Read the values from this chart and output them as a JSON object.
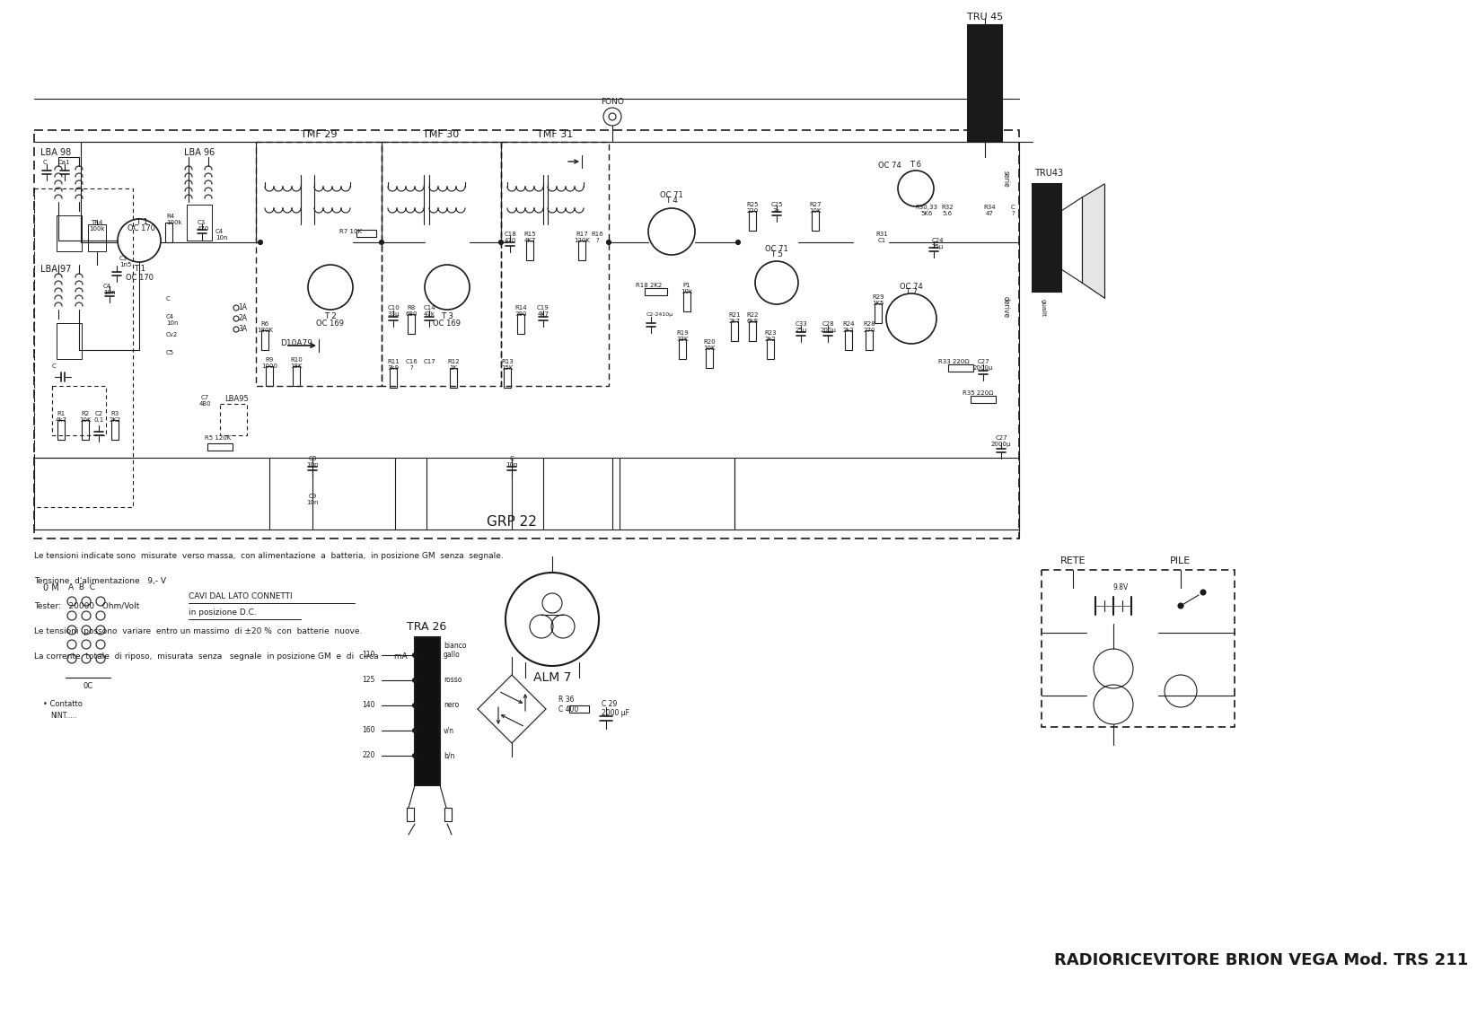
{
  "title": "RADIORICEVITORE BRION VEGA Mod. TRS 211",
  "bg_color": "#ffffff",
  "line_color": "#1a1a1a",
  "lc_dark": "#111111",
  "notes": [
    "Le tensioni indicate sono  misurate  verso massa,  con alimentazione  a  batteria,  in posizione GM  senza  segnale.",
    "Tensione  d'alimentazione   9,- V",
    "Tester:   20000   Ohm/Volt",
    "Le tensioni  possono  variare  entro un massimo  di ±20 %  con  batterie  nuove.",
    "La corrente  totale  di riposo,  misurata  senza   segnale  in posizione GM  e  di  circa      mA"
  ],
  "grp22_label": "GRP 22"
}
